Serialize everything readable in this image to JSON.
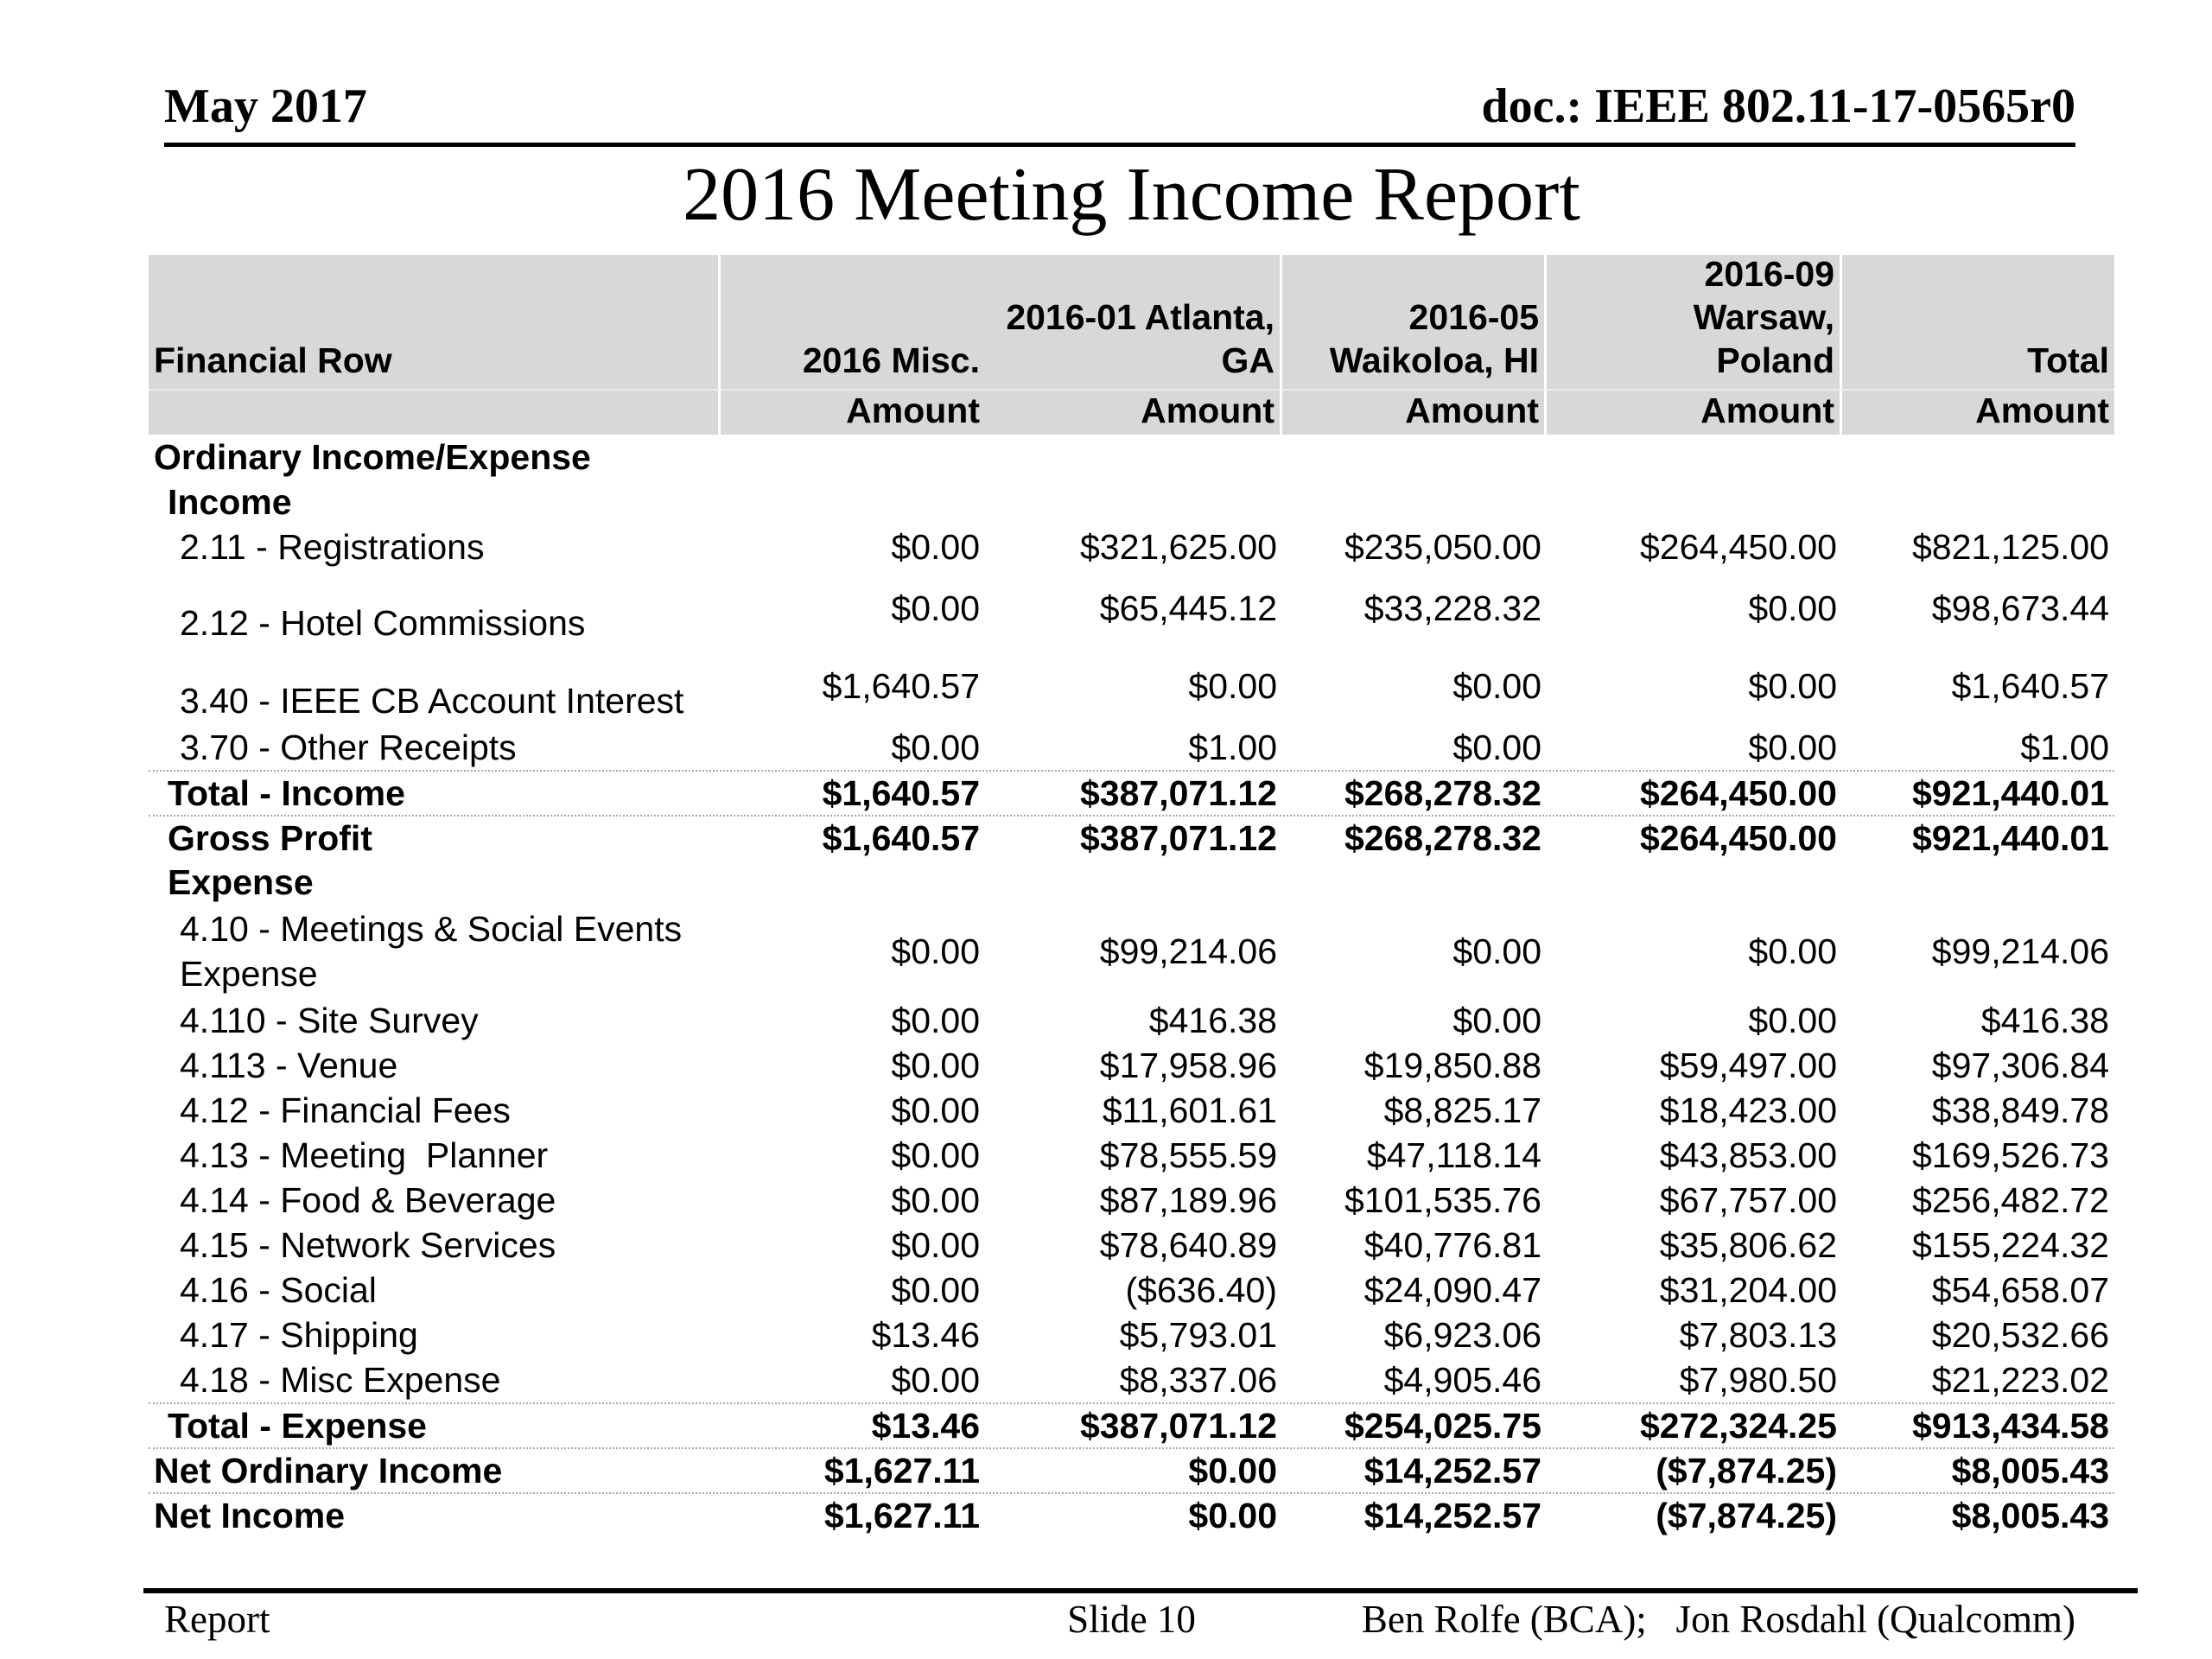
{
  "page_header": {
    "date": "May 2017",
    "doc_id": "doc.: IEEE 802.11-17-0565r0"
  },
  "title": "2016 Meeting Income Report",
  "colors": {
    "header_bg": "#d8d8d8",
    "text": "#000000"
  },
  "table": {
    "columns": [
      {
        "label": "Financial Row",
        "sublabel": ""
      },
      {
        "label": "2016 Misc.",
        "sublabel": "Amount"
      },
      {
        "lines": [
          "2016-01 Atlanta,",
          "GA"
        ],
        "sublabel": "Amount"
      },
      {
        "lines": [
          "2016-05",
          "Waikoloa, HI"
        ],
        "sublabel": "Amount"
      },
      {
        "lines": [
          "2016-09",
          "Warsaw,",
          "Poland"
        ],
        "sublabel": "Amount"
      },
      {
        "label": "Total",
        "sublabel": "Amount"
      }
    ],
    "rows": [
      {
        "label": "Ordinary Income/Expense",
        "type": "section",
        "indent": 0,
        "size": "std",
        "dotted_top": false,
        "values": [
          "",
          "",
          "",
          "",
          ""
        ]
      },
      {
        "label": "Income",
        "type": "section",
        "indent": 1,
        "size": "std",
        "dotted_top": false,
        "values": [
          "",
          "",
          "",
          "",
          ""
        ]
      },
      {
        "label": "2.11 - Registrations",
        "type": "detail",
        "indent": 2,
        "size": "std",
        "dotted_top": false,
        "values": [
          "$0.00",
          "$321,625.00",
          "$235,050.00",
          "$264,450.00",
          "$821,125.00"
        ]
      },
      {
        "label": "2.12 - Hotel Commissions",
        "type": "detail",
        "indent": 2,
        "size": "tall",
        "dotted_top": false,
        "values": [
          "$0.00",
          "$65,445.12",
          "$33,228.32",
          "$0.00",
          "$98,673.44"
        ]
      },
      {
        "label": "3.40 - IEEE CB Account Interest",
        "type": "detail",
        "indent": 2,
        "size": "tall",
        "dotted_top": false,
        "values": [
          "$1,640.57",
          "$0.00",
          "$0.00",
          "$0.00",
          "$1,640.57"
        ]
      },
      {
        "label": "3.70 - Other Receipts",
        "type": "detail",
        "indent": 2,
        "size": "std",
        "dotted_top": false,
        "values": [
          "$0.00",
          "$1.00",
          "$0.00",
          "$0.00",
          "$1.00"
        ]
      },
      {
        "label": "Total - Income",
        "type": "total",
        "indent": 1,
        "size": "std",
        "dotted_top": true,
        "values": [
          "$1,640.57",
          "$387,071.12",
          "$268,278.32",
          "$264,450.00",
          "$921,440.01"
        ]
      },
      {
        "label": "Gross Profit",
        "type": "total",
        "indent": 1,
        "size": "std",
        "dotted_top": true,
        "values": [
          "$1,640.57",
          "$387,071.12",
          "$268,278.32",
          "$264,450.00",
          "$921,440.01"
        ]
      },
      {
        "label": "Expense",
        "type": "section",
        "indent": 1,
        "size": "std",
        "dotted_top": false,
        "values": [
          "",
          "",
          "",
          "",
          ""
        ]
      },
      {
        "label": "4.10 - Meetings & Social Events Expense",
        "type": "detail",
        "indent": 2,
        "size": "wrap",
        "dotted_top": false,
        "values": [
          "$0.00",
          "$99,214.06",
          "$0.00",
          "$0.00",
          "$99,214.06"
        ]
      },
      {
        "label": "4.110 - Site Survey",
        "type": "detail",
        "indent": 2,
        "size": "std",
        "dotted_top": false,
        "values": [
          "$0.00",
          "$416.38",
          "$0.00",
          "$0.00",
          "$416.38"
        ]
      },
      {
        "label": "4.113 - Venue",
        "type": "detail",
        "indent": 2,
        "size": "std",
        "dotted_top": false,
        "values": [
          "$0.00",
          "$17,958.96",
          "$19,850.88",
          "$59,497.00",
          "$97,306.84"
        ]
      },
      {
        "label": "4.12 - Financial Fees",
        "type": "detail",
        "indent": 2,
        "size": "std",
        "dotted_top": false,
        "values": [
          "$0.00",
          "$11,601.61",
          "$8,825.17",
          "$18,423.00",
          "$38,849.78"
        ]
      },
      {
        "label": "4.13 - Meeting  Planner",
        "type": "detail",
        "indent": 2,
        "size": "std",
        "dotted_top": false,
        "values": [
          "$0.00",
          "$78,555.59",
          "$47,118.14",
          "$43,853.00",
          "$169,526.73"
        ]
      },
      {
        "label": "4.14 - Food & Beverage",
        "type": "detail",
        "indent": 2,
        "size": "std",
        "dotted_top": false,
        "values": [
          "$0.00",
          "$87,189.96",
          "$101,535.76",
          "$67,757.00",
          "$256,482.72"
        ]
      },
      {
        "label": "4.15 - Network Services",
        "type": "detail",
        "indent": 2,
        "size": "std",
        "dotted_top": false,
        "values": [
          "$0.00",
          "$78,640.89",
          "$40,776.81",
          "$35,806.62",
          "$155,224.32"
        ]
      },
      {
        "label": "4.16 - Social",
        "type": "detail",
        "indent": 2,
        "size": "std",
        "dotted_top": false,
        "values": [
          "$0.00",
          "($636.40)",
          "$24,090.47",
          "$31,204.00",
          "$54,658.07"
        ]
      },
      {
        "label": "4.17 - Shipping",
        "type": "detail",
        "indent": 2,
        "size": "std",
        "dotted_top": false,
        "values": [
          "$13.46",
          "$5,793.01",
          "$6,923.06",
          "$7,803.13",
          "$20,532.66"
        ]
      },
      {
        "label": "4.18 - Misc Expense",
        "type": "detail",
        "indent": 2,
        "size": "std",
        "dotted_top": false,
        "values": [
          "$0.00",
          "$8,337.06",
          "$4,905.46",
          "$7,980.50",
          "$21,223.02"
        ]
      },
      {
        "label": "Total - Expense",
        "type": "total",
        "indent": 1,
        "size": "std",
        "dotted_top": true,
        "values": [
          "$13.46",
          "$387,071.12",
          "$254,025.75",
          "$272,324.25",
          "$913,434.58"
        ]
      },
      {
        "label": "Net Ordinary Income",
        "type": "total",
        "indent": 0,
        "size": "std",
        "dotted_top": true,
        "values": [
          "$1,627.11",
          "$0.00",
          "$14,252.57",
          "($7,874.25)",
          "$8,005.43"
        ]
      },
      {
        "label": "Net Income",
        "type": "total",
        "indent": 0,
        "size": "std",
        "dotted_top": true,
        "values": [
          "$1,627.11",
          "$0.00",
          "$14,252.57",
          "($7,874.25)",
          "$8,005.43"
        ]
      }
    ]
  },
  "page_footer": {
    "left": "Report",
    "center": "Slide 10",
    "right": "Ben Rolfe (BCA);   Jon Rosdahl (Qualcomm)"
  }
}
